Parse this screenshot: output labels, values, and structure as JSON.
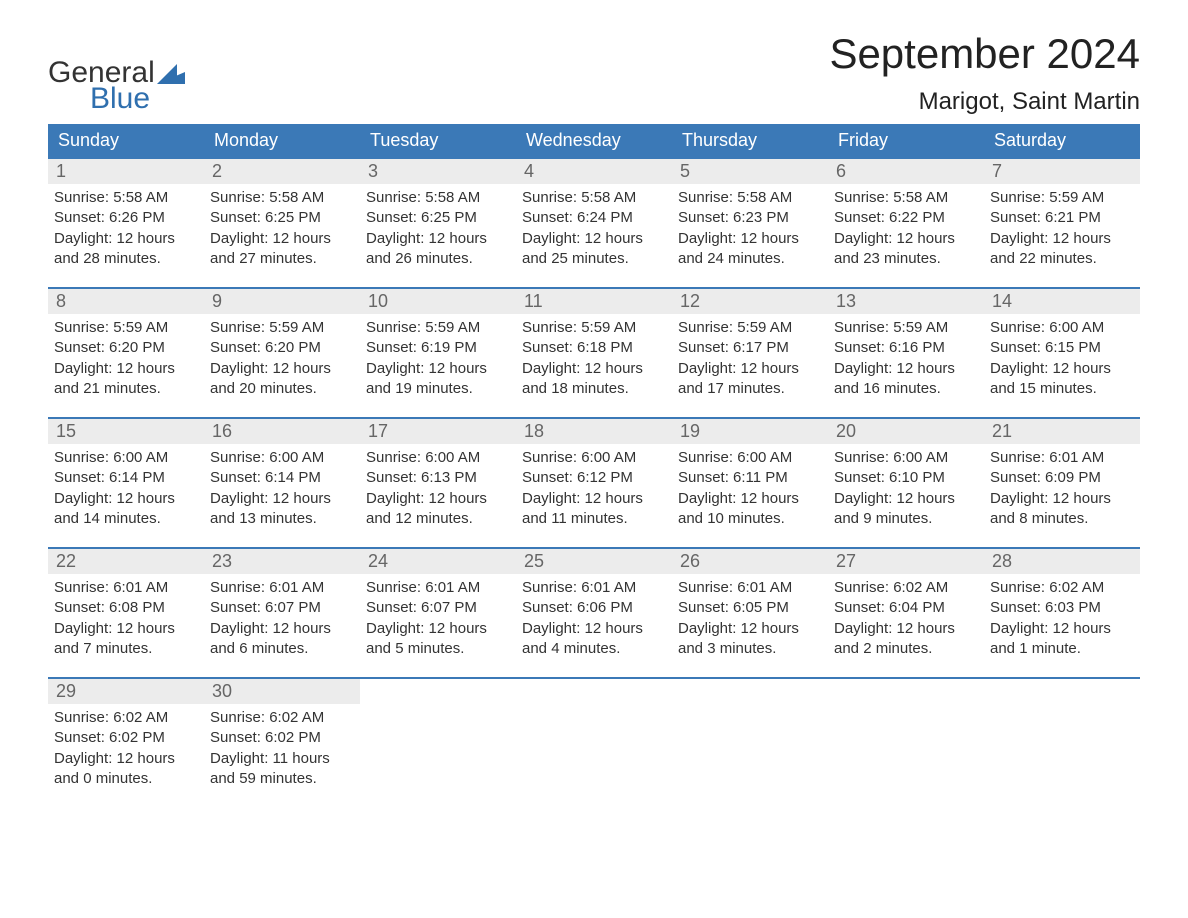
{
  "logo": {
    "line1": "General",
    "line2": "Blue",
    "flag_color": "#2f6fae"
  },
  "header": {
    "month_title": "September 2024",
    "location": "Marigot, Saint Martin"
  },
  "colors": {
    "header_bg": "#3b79b7",
    "header_text": "#ffffff",
    "daynum_bg": "#ececec",
    "daynum_text": "#666666",
    "body_text": "#333333",
    "week_border": "#3b79b7",
    "background": "#ffffff"
  },
  "weekdays": [
    "Sunday",
    "Monday",
    "Tuesday",
    "Wednesday",
    "Thursday",
    "Friday",
    "Saturday"
  ],
  "weeks": [
    [
      {
        "num": "1",
        "sunrise": "Sunrise: 5:58 AM",
        "sunset": "Sunset: 6:26 PM",
        "dl1": "Daylight: 12 hours",
        "dl2": "and 28 minutes."
      },
      {
        "num": "2",
        "sunrise": "Sunrise: 5:58 AM",
        "sunset": "Sunset: 6:25 PM",
        "dl1": "Daylight: 12 hours",
        "dl2": "and 27 minutes."
      },
      {
        "num": "3",
        "sunrise": "Sunrise: 5:58 AM",
        "sunset": "Sunset: 6:25 PM",
        "dl1": "Daylight: 12 hours",
        "dl2": "and 26 minutes."
      },
      {
        "num": "4",
        "sunrise": "Sunrise: 5:58 AM",
        "sunset": "Sunset: 6:24 PM",
        "dl1": "Daylight: 12 hours",
        "dl2": "and 25 minutes."
      },
      {
        "num": "5",
        "sunrise": "Sunrise: 5:58 AM",
        "sunset": "Sunset: 6:23 PM",
        "dl1": "Daylight: 12 hours",
        "dl2": "and 24 minutes."
      },
      {
        "num": "6",
        "sunrise": "Sunrise: 5:58 AM",
        "sunset": "Sunset: 6:22 PM",
        "dl1": "Daylight: 12 hours",
        "dl2": "and 23 minutes."
      },
      {
        "num": "7",
        "sunrise": "Sunrise: 5:59 AM",
        "sunset": "Sunset: 6:21 PM",
        "dl1": "Daylight: 12 hours",
        "dl2": "and 22 minutes."
      }
    ],
    [
      {
        "num": "8",
        "sunrise": "Sunrise: 5:59 AM",
        "sunset": "Sunset: 6:20 PM",
        "dl1": "Daylight: 12 hours",
        "dl2": "and 21 minutes."
      },
      {
        "num": "9",
        "sunrise": "Sunrise: 5:59 AM",
        "sunset": "Sunset: 6:20 PM",
        "dl1": "Daylight: 12 hours",
        "dl2": "and 20 minutes."
      },
      {
        "num": "10",
        "sunrise": "Sunrise: 5:59 AM",
        "sunset": "Sunset: 6:19 PM",
        "dl1": "Daylight: 12 hours",
        "dl2": "and 19 minutes."
      },
      {
        "num": "11",
        "sunrise": "Sunrise: 5:59 AM",
        "sunset": "Sunset: 6:18 PM",
        "dl1": "Daylight: 12 hours",
        "dl2": "and 18 minutes."
      },
      {
        "num": "12",
        "sunrise": "Sunrise: 5:59 AM",
        "sunset": "Sunset: 6:17 PM",
        "dl1": "Daylight: 12 hours",
        "dl2": "and 17 minutes."
      },
      {
        "num": "13",
        "sunrise": "Sunrise: 5:59 AM",
        "sunset": "Sunset: 6:16 PM",
        "dl1": "Daylight: 12 hours",
        "dl2": "and 16 minutes."
      },
      {
        "num": "14",
        "sunrise": "Sunrise: 6:00 AM",
        "sunset": "Sunset: 6:15 PM",
        "dl1": "Daylight: 12 hours",
        "dl2": "and 15 minutes."
      }
    ],
    [
      {
        "num": "15",
        "sunrise": "Sunrise: 6:00 AM",
        "sunset": "Sunset: 6:14 PM",
        "dl1": "Daylight: 12 hours",
        "dl2": "and 14 minutes."
      },
      {
        "num": "16",
        "sunrise": "Sunrise: 6:00 AM",
        "sunset": "Sunset: 6:14 PM",
        "dl1": "Daylight: 12 hours",
        "dl2": "and 13 minutes."
      },
      {
        "num": "17",
        "sunrise": "Sunrise: 6:00 AM",
        "sunset": "Sunset: 6:13 PM",
        "dl1": "Daylight: 12 hours",
        "dl2": "and 12 minutes."
      },
      {
        "num": "18",
        "sunrise": "Sunrise: 6:00 AM",
        "sunset": "Sunset: 6:12 PM",
        "dl1": "Daylight: 12 hours",
        "dl2": "and 11 minutes."
      },
      {
        "num": "19",
        "sunrise": "Sunrise: 6:00 AM",
        "sunset": "Sunset: 6:11 PM",
        "dl1": "Daylight: 12 hours",
        "dl2": "and 10 minutes."
      },
      {
        "num": "20",
        "sunrise": "Sunrise: 6:00 AM",
        "sunset": "Sunset: 6:10 PM",
        "dl1": "Daylight: 12 hours",
        "dl2": "and 9 minutes."
      },
      {
        "num": "21",
        "sunrise": "Sunrise: 6:01 AM",
        "sunset": "Sunset: 6:09 PM",
        "dl1": "Daylight: 12 hours",
        "dl2": "and 8 minutes."
      }
    ],
    [
      {
        "num": "22",
        "sunrise": "Sunrise: 6:01 AM",
        "sunset": "Sunset: 6:08 PM",
        "dl1": "Daylight: 12 hours",
        "dl2": "and 7 minutes."
      },
      {
        "num": "23",
        "sunrise": "Sunrise: 6:01 AM",
        "sunset": "Sunset: 6:07 PM",
        "dl1": "Daylight: 12 hours",
        "dl2": "and 6 minutes."
      },
      {
        "num": "24",
        "sunrise": "Sunrise: 6:01 AM",
        "sunset": "Sunset: 6:07 PM",
        "dl1": "Daylight: 12 hours",
        "dl2": "and 5 minutes."
      },
      {
        "num": "25",
        "sunrise": "Sunrise: 6:01 AM",
        "sunset": "Sunset: 6:06 PM",
        "dl1": "Daylight: 12 hours",
        "dl2": "and 4 minutes."
      },
      {
        "num": "26",
        "sunrise": "Sunrise: 6:01 AM",
        "sunset": "Sunset: 6:05 PM",
        "dl1": "Daylight: 12 hours",
        "dl2": "and 3 minutes."
      },
      {
        "num": "27",
        "sunrise": "Sunrise: 6:02 AM",
        "sunset": "Sunset: 6:04 PM",
        "dl1": "Daylight: 12 hours",
        "dl2": "and 2 minutes."
      },
      {
        "num": "28",
        "sunrise": "Sunrise: 6:02 AM",
        "sunset": "Sunset: 6:03 PM",
        "dl1": "Daylight: 12 hours",
        "dl2": "and 1 minute."
      }
    ],
    [
      {
        "num": "29",
        "sunrise": "Sunrise: 6:02 AM",
        "sunset": "Sunset: 6:02 PM",
        "dl1": "Daylight: 12 hours",
        "dl2": "and 0 minutes."
      },
      {
        "num": "30",
        "sunrise": "Sunrise: 6:02 AM",
        "sunset": "Sunset: 6:02 PM",
        "dl1": "Daylight: 11 hours",
        "dl2": "and 59 minutes."
      },
      null,
      null,
      null,
      null,
      null
    ]
  ]
}
